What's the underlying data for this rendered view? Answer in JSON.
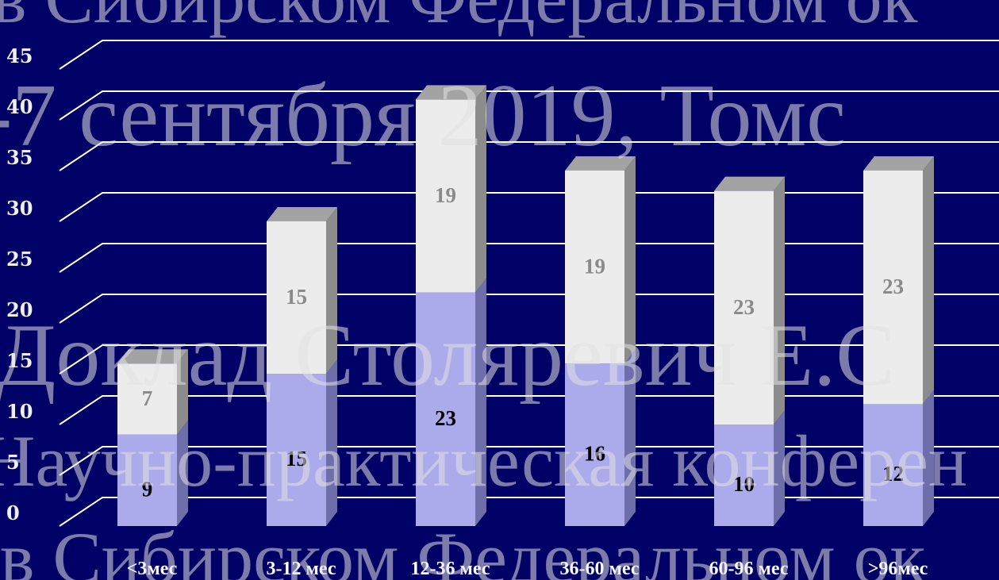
{
  "chart_data": {
    "type": "bar",
    "stacked": true,
    "three_d": true,
    "categories": [
      "<3мес",
      "3-12 мес",
      "12-36 мес",
      "36-60 мес",
      "60-96 мес",
      ">96мес"
    ],
    "series": [
      {
        "values": [
          9,
          15,
          23,
          16,
          10,
          12
        ]
      },
      {
        "values": [
          7,
          15,
          19,
          19,
          23,
          23
        ]
      }
    ],
    "y_ticks": [
      "0",
      "5",
      "10",
      "15",
      "20",
      "25",
      "30",
      "35",
      "40",
      "45"
    ],
    "ylim": [
      0,
      45
    ],
    "grid": true,
    "colors": {
      "background": "#000066",
      "series_bottom": "#ababec",
      "series_top": "#ececec",
      "grid": "#ffffff"
    }
  },
  "watermark": {
    "lines": [
      "в Сибирском Федеральном ок",
      "-7 сентября 2019, Томс",
      "Доклад Столяревич Е.С",
      "Научно-практическая конферен",
      "в Сибирском Федеральном ок"
    ]
  }
}
